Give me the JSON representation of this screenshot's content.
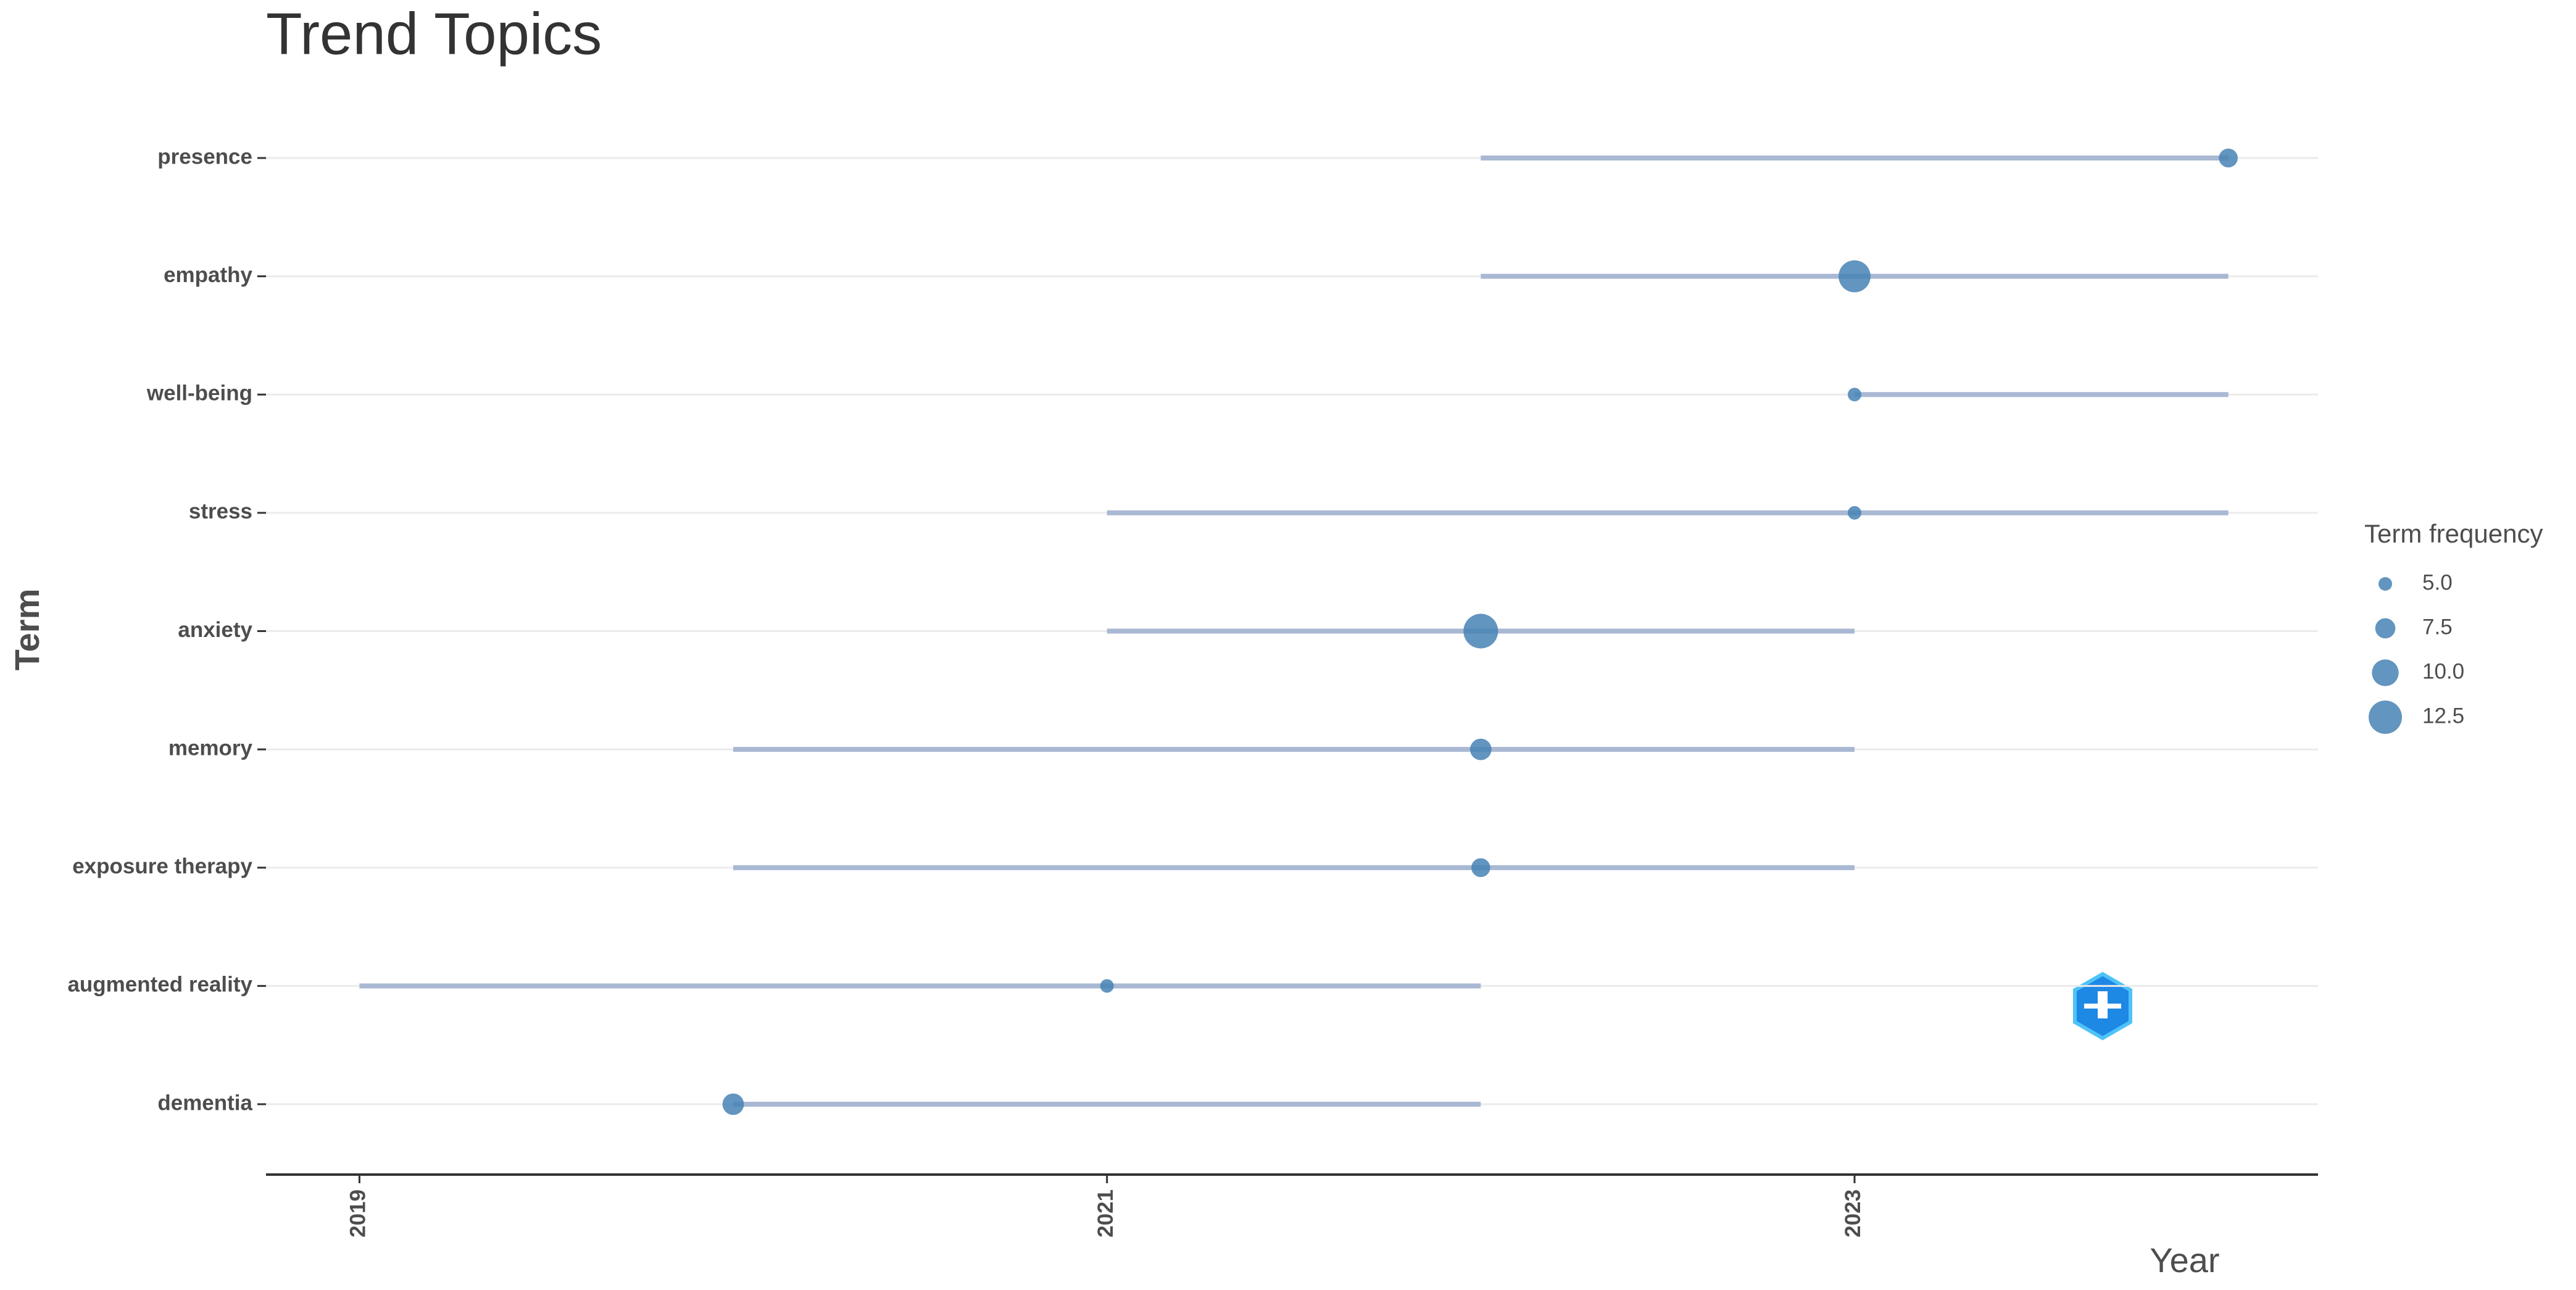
{
  "chart_data": {
    "type": "trend",
    "title": "Trend Topics",
    "x_label": "Year",
    "y_label": "Term",
    "categories": [
      "presence",
      "empathy",
      "well-being",
      "stress",
      "anxiety",
      "memory",
      "exposure therapy",
      "augmented reality",
      "dementia"
    ],
    "year_q1": [
      2022,
      2022,
      2023,
      2021,
      2021,
      2020,
      2020,
      2019,
      2020
    ],
    "year_med": [
      2024,
      2023,
      2023,
      2023,
      2022,
      2022,
      2022,
      2021,
      2020
    ],
    "year_q3": [
      2024,
      2024,
      2024,
      2024,
      2023,
      2023,
      2023,
      2022,
      2022
    ],
    "freq": [
      7,
      12,
      5,
      5,
      13,
      8,
      7,
      5,
      8
    ],
    "color": "#4682b4",
    "line_color": "#a9b8d3",
    "xlim": [
      2018.75,
      2024.24
    ],
    "xticks": [
      2019,
      2021,
      2023
    ],
    "grid": true,
    "size_legend": {
      "title": "Term frequency",
      "values": [
        {
          "value": 5,
          "label": "5.0"
        },
        {
          "value": 7.5,
          "label": "7.5"
        },
        {
          "value": 10,
          "label": "10.0"
        },
        {
          "value": 12.5,
          "label": "12.5"
        }
      ]
    }
  }
}
